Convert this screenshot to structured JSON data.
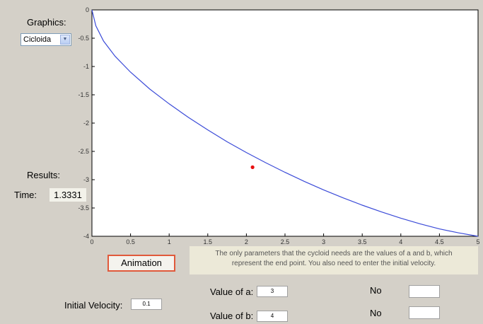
{
  "controls": {
    "graphics_label": "Graphics:",
    "graphics_select_value": "Cicloida",
    "results_label": "Results:",
    "time_label": "Time:",
    "time_value": "1.3331",
    "animation_button": "Animation",
    "info_line1": "The only parameters that the cycloid needs are the values of a and b, which",
    "info_line2": "represent the end point. You also need to enter the initial velocity.",
    "initial_velocity_label": "Initial Velocity:",
    "initial_velocity_value": "0.1",
    "value_a_label": "Value of a:",
    "value_a": "3",
    "value_b_label": "Value of b:",
    "value_b": "4",
    "no_label_1": "No",
    "no_label_2": "No"
  },
  "chart_data": {
    "type": "line",
    "title": "",
    "xlabel": "",
    "ylabel": "",
    "xlim": [
      0,
      5
    ],
    "ylim": [
      -4,
      0
    ],
    "x_ticks": [
      "0",
      "0.5",
      "1",
      "1.5",
      "2",
      "2.5",
      "3",
      "3.5",
      "4",
      "4.5",
      "5"
    ],
    "y_ticks": [
      "0",
      "-0.5",
      "-1",
      "-1.5",
      "-2",
      "-2.5",
      "-3",
      "-3.5",
      "-4"
    ],
    "grid": false,
    "series": [
      {
        "color": "#3b4bd8",
        "x": [
          0,
          0.05,
          0.15,
          0.3,
          0.5,
          0.75,
          1.0,
          1.25,
          1.5,
          1.75,
          2.0,
          2.25,
          2.5,
          2.75,
          3.0,
          3.25,
          3.5,
          3.75,
          4.0,
          4.25,
          4.5,
          4.75,
          5.0
        ],
        "y": [
          0,
          -0.28,
          -0.55,
          -0.82,
          -1.1,
          -1.4,
          -1.66,
          -1.9,
          -2.12,
          -2.33,
          -2.52,
          -2.7,
          -2.87,
          -3.03,
          -3.18,
          -3.32,
          -3.45,
          -3.57,
          -3.68,
          -3.78,
          -3.87,
          -3.94,
          -4.0
        ]
      }
    ],
    "marker": {
      "x": 2.08,
      "y": -2.78,
      "color": "#e81010"
    }
  }
}
